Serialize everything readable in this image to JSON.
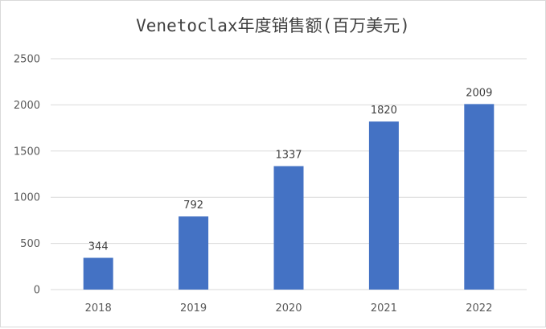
{
  "chart_data": {
    "type": "bar",
    "title": "Venetoclax年度销售额(百万美元)",
    "categories": [
      "2018",
      "2019",
      "2020",
      "2021",
      "2022"
    ],
    "values": [
      344,
      792,
      1337,
      1820,
      2009
    ],
    "data_labels": [
      "344",
      "792",
      "1337",
      "1820",
      "2009"
    ],
    "y_ticks": [
      "0",
      "500",
      "1000",
      "1500",
      "2000",
      "2500"
    ],
    "ylim": [
      0,
      2500
    ],
    "xlabel": "",
    "ylabel": "",
    "grid": true,
    "legend": "none",
    "bar_color": "#4472c4"
  }
}
